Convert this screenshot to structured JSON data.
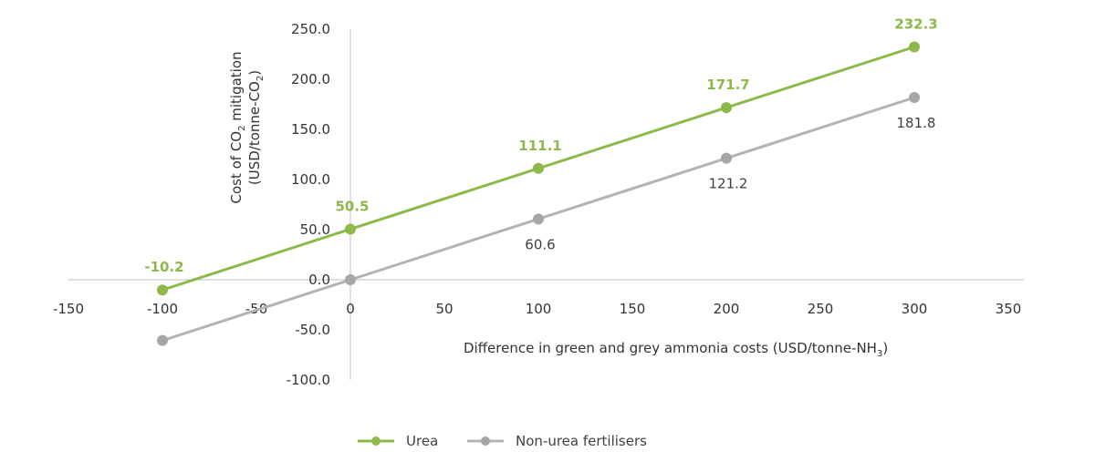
{
  "chart_data": {
    "type": "line",
    "x": [
      -100,
      0,
      100,
      200,
      300
    ],
    "series": [
      {
        "name": "Urea",
        "color": "#8db84a",
        "values": [
          -10.2,
          50.5,
          111.1,
          171.7,
          232.3
        ],
        "labels": [
          "-10.2",
          "50.5",
          "111.1",
          "171.7",
          "232.3"
        ]
      },
      {
        "name": "Non-urea fertilisers",
        "color": "#b3b3b3",
        "values": [
          -60.6,
          0,
          60.6,
          121.2,
          181.8
        ],
        "labels": [
          "",
          "",
          "60.6",
          "121.2",
          "181.8"
        ]
      }
    ],
    "xlim": [
      -150,
      350
    ],
    "ylim": [
      -100,
      250
    ],
    "xticks": [
      "-150",
      "-100",
      "-50",
      "0",
      "50",
      "100",
      "150",
      "200",
      "250",
      "300",
      "350"
    ],
    "yticks": [
      "-100.0",
      "-50.0",
      "0.0",
      "50.0",
      "100.0",
      "150.0",
      "200.0",
      "250.0"
    ],
    "xlabel": {
      "text": "Difference in green and grey ammonia costs (USD/tonne-NH",
      "sub": "3",
      "tail": ")"
    },
    "ylabel": {
      "line1": {
        "pre": "Cost of CO",
        "sub": "2",
        "post": " mitigation"
      },
      "line2": {
        "pre": "(USD/tonne-CO",
        "sub": "2",
        "post": ")"
      }
    },
    "grid": false,
    "legend": "bottom-center"
  }
}
